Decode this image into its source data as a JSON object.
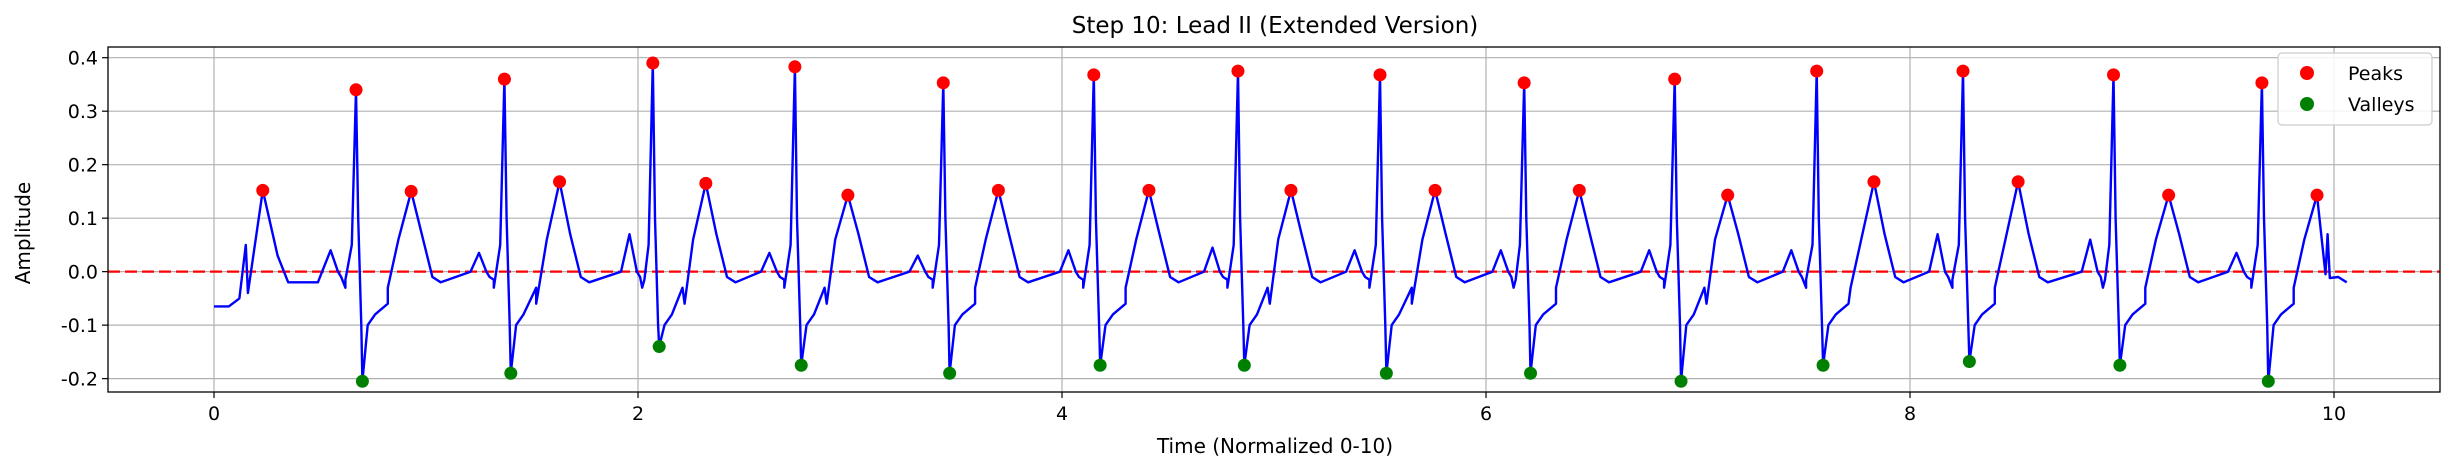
{
  "chart_data": {
    "type": "line",
    "title": "Step 10: Lead II (Extended Version)",
    "xlabel": "Time (Normalized 0-10)",
    "ylabel": "Amplitude",
    "xlim": [
      -0.5,
      10.5
    ],
    "ylim": [
      -0.225,
      0.42
    ],
    "xticks": [
      0,
      2,
      4,
      6,
      8,
      10
    ],
    "yticks": [
      -0.2,
      -0.1,
      0.0,
      0.1,
      0.2,
      0.3,
      0.4
    ],
    "grid": true,
    "legend_position": "top-right",
    "baseline": {
      "y": 0.0,
      "color": "#ff0000",
      "style": "dashed"
    },
    "signal": {
      "color": "#0000ff",
      "start": 0.0,
      "end": 9.98,
      "start_level": -0.065
    },
    "beats": [
      {
        "p": 0.55,
        "pa": 0.04,
        "r": 0.67,
        "ra": 0.34,
        "s": 0.7,
        "sa": -0.205,
        "t": 0.93,
        "ta": 0.15
      },
      {
        "p": 1.25,
        "pa": 0.035,
        "r": 1.37,
        "ra": 0.36,
        "s": 1.4,
        "sa": -0.19,
        "t": 1.63,
        "ta": 0.168
      },
      {
        "p": 1.96,
        "pa": 0.07,
        "r": 2.07,
        "ra": 0.39,
        "s": 2.1,
        "sa": -0.14,
        "t": 2.32,
        "ta": 0.165
      },
      {
        "p": 2.62,
        "pa": 0.035,
        "r": 2.74,
        "ra": 0.383,
        "s": 2.77,
        "sa": -0.175,
        "t": 2.99,
        "ta": 0.143
      },
      {
        "p": 3.32,
        "pa": 0.03,
        "r": 3.44,
        "ra": 0.353,
        "s": 3.47,
        "sa": -0.19,
        "t": 3.7,
        "ta": 0.152
      },
      {
        "p": 4.03,
        "pa": 0.04,
        "r": 4.15,
        "ra": 0.368,
        "s": 4.18,
        "sa": -0.175,
        "t": 4.41,
        "ta": 0.152
      },
      {
        "p": 4.71,
        "pa": 0.045,
        "r": 4.83,
        "ra": 0.375,
        "s": 4.86,
        "sa": -0.175,
        "t": 5.08,
        "ta": 0.152
      },
      {
        "p": 5.38,
        "pa": 0.04,
        "r": 5.5,
        "ra": 0.368,
        "s": 5.53,
        "sa": -0.19,
        "t": 5.76,
        "ta": 0.152
      },
      {
        "p": 6.07,
        "pa": 0.04,
        "r": 6.18,
        "ra": 0.353,
        "s": 6.21,
        "sa": -0.19,
        "t": 6.44,
        "ta": 0.152
      },
      {
        "p": 6.77,
        "pa": 0.04,
        "r": 6.89,
        "ra": 0.36,
        "s": 6.92,
        "sa": -0.205,
        "t": 7.14,
        "ta": 0.143
      },
      {
        "p": 7.44,
        "pa": 0.04,
        "r": 7.56,
        "ra": 0.375,
        "s": 7.59,
        "sa": -0.175,
        "t": 7.83,
        "ta": 0.168
      },
      {
        "p": 8.13,
        "pa": 0.07,
        "r": 8.25,
        "ra": 0.375,
        "s": 8.28,
        "sa": -0.168,
        "t": 8.51,
        "ta": 0.168
      },
      {
        "p": 8.85,
        "pa": 0.06,
        "r": 8.96,
        "ra": 0.368,
        "s": 8.99,
        "sa": -0.175,
        "t": 9.22,
        "ta": 0.143
      },
      {
        "p": 9.54,
        "pa": 0.035,
        "r": 9.66,
        "ra": 0.353,
        "s": 9.69,
        "sa": -0.205,
        "t": 9.92,
        "ta": 0.143
      }
    ],
    "series": [
      {
        "name": "Peaks",
        "color": "#ff0000",
        "x": [
          0.23,
          0.67,
          0.93,
          1.37,
          1.63,
          2.07,
          2.32,
          2.74,
          2.99,
          3.44,
          3.7,
          4.15,
          4.41,
          4.83,
          5.08,
          5.5,
          5.76,
          6.18,
          6.44,
          6.89,
          7.14,
          7.56,
          7.83,
          8.25,
          8.51,
          8.96,
          9.22,
          9.66,
          9.92
        ],
        "y": [
          0.152,
          0.34,
          0.15,
          0.36,
          0.168,
          0.39,
          0.165,
          0.383,
          0.143,
          0.353,
          0.152,
          0.368,
          0.152,
          0.375,
          0.152,
          0.368,
          0.152,
          0.353,
          0.152,
          0.36,
          0.143,
          0.375,
          0.168,
          0.375,
          0.168,
          0.368,
          0.143,
          0.353,
          0.143
        ]
      },
      {
        "name": "Valleys",
        "color": "#008000",
        "x": [
          0.7,
          1.4,
          2.1,
          2.77,
          3.47,
          4.18,
          4.86,
          5.53,
          6.21,
          6.92,
          7.59,
          8.28,
          8.99,
          9.69
        ],
        "y": [
          -0.205,
          -0.19,
          -0.14,
          -0.175,
          -0.19,
          -0.175,
          -0.175,
          -0.19,
          -0.19,
          -0.205,
          -0.175,
          -0.168,
          -0.175,
          -0.205
        ]
      }
    ]
  }
}
